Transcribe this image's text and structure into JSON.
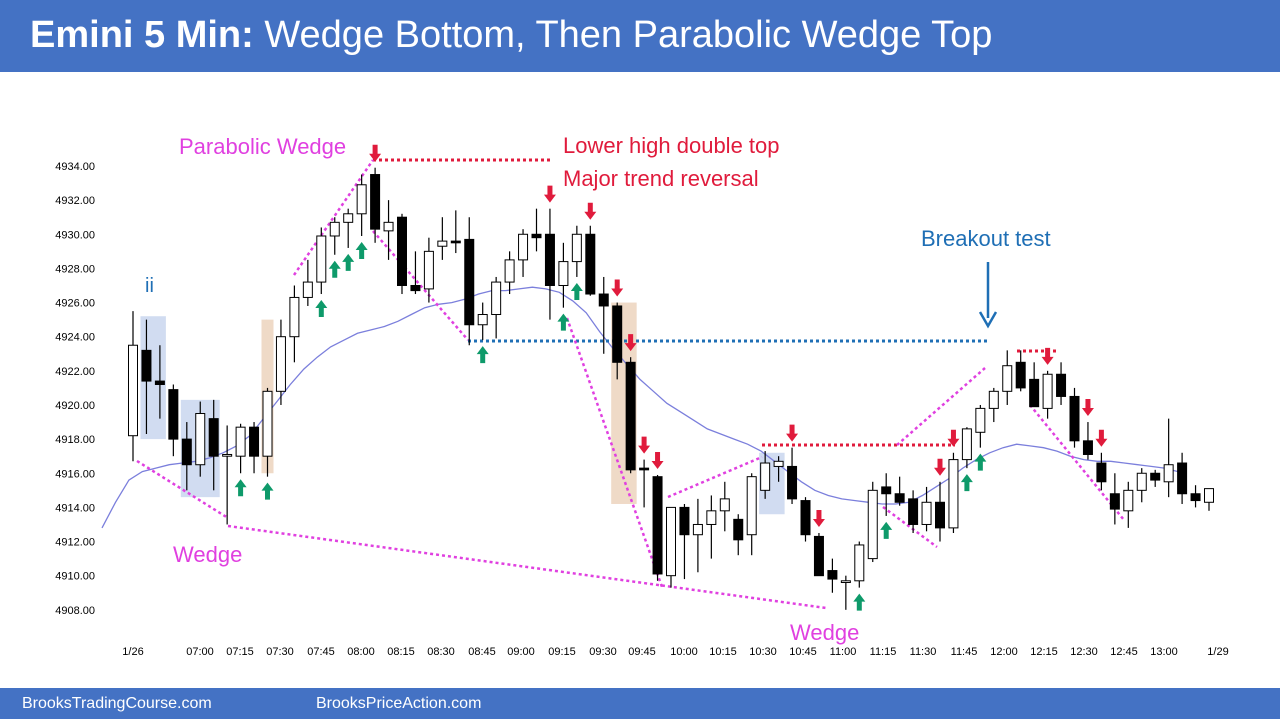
{
  "header": {
    "title_bold": "Emini 5 Min:",
    "title_rest": "Wedge Bottom, Then Parabolic Wedge Top",
    "background": "#4472c4"
  },
  "footer": {
    "left_link": "BrooksTradingCourse.com",
    "right_link": "BrooksPriceAction.com"
  },
  "chart_data": {
    "type": "candlestick",
    "title": "",
    "y_ticks": [
      "4934.00",
      "4932.00",
      "4930.00",
      "4928.00",
      "4926.00",
      "4924.00",
      "4922.00",
      "4920.00",
      "4918.00",
      "4916.00",
      "4914.00",
      "4912.00",
      "4910.00",
      "4908.00"
    ],
    "x_ticks": [
      "1/26",
      "07:00",
      "07:15",
      "07:30",
      "07:45",
      "08:00",
      "08:15",
      "08:30",
      "08:45",
      "09:00",
      "09:15",
      "09:30",
      "09:45",
      "10:00",
      "10:15",
      "10:30",
      "10:45",
      "11:00",
      "11:15",
      "11:30",
      "11:45",
      "12:00",
      "12:15",
      "12:30",
      "12:45",
      "13:00",
      "1/29"
    ],
    "ylim": [
      4907,
      4935.5
    ],
    "colors": {
      "bull": "#ffffff",
      "bear": "#000000",
      "ema": "#7b7fdc",
      "magenta": "#e040e0",
      "red": "#e01b3c",
      "blue": "#1f6fb5",
      "green": "#0e9a6a"
    },
    "candles": [
      {
        "o": 4918.2,
        "h": 4925.5,
        "l": 4916.7,
        "c": 4923.5
      },
      {
        "o": 4923.2,
        "h": 4925.0,
        "l": 4918.3,
        "c": 4921.4
      },
      {
        "o": 4921.4,
        "h": 4923.5,
        "l": 4919.2,
        "c": 4921.2
      },
      {
        "o": 4920.9,
        "h": 4921.2,
        "l": 4917.0,
        "c": 4918.0
      },
      {
        "o": 4918.0,
        "h": 4919.0,
        "l": 4915.0,
        "c": 4916.5
      },
      {
        "o": 4916.5,
        "h": 4920.2,
        "l": 4915.8,
        "c": 4919.5
      },
      {
        "o": 4919.2,
        "h": 4920.3,
        "l": 4915.0,
        "c": 4917.0
      },
      {
        "o": 4917.0,
        "h": 4918.8,
        "l": 4913.0,
        "c": 4917.1
      },
      {
        "o": 4917.0,
        "h": 4918.9,
        "l": 4916.0,
        "c": 4918.7
      },
      {
        "o": 4918.7,
        "h": 4919.0,
        "l": 4916.0,
        "c": 4917.0
      },
      {
        "o": 4917.0,
        "h": 4921.0,
        "l": 4915.8,
        "c": 4920.8
      },
      {
        "o": 4920.8,
        "h": 4925.0,
        "l": 4920.0,
        "c": 4924.0
      },
      {
        "o": 4924.0,
        "h": 4927.0,
        "l": 4922.5,
        "c": 4926.3
      },
      {
        "o": 4926.3,
        "h": 4928.5,
        "l": 4925.8,
        "c": 4927.2
      },
      {
        "o": 4927.2,
        "h": 4930.4,
        "l": 4926.5,
        "c": 4929.9
      },
      {
        "o": 4929.9,
        "h": 4931.0,
        "l": 4928.8,
        "c": 4930.7
      },
      {
        "o": 4930.7,
        "h": 4931.5,
        "l": 4929.2,
        "c": 4931.2
      },
      {
        "o": 4931.2,
        "h": 4933.5,
        "l": 4929.9,
        "c": 4932.9
      },
      {
        "o": 4933.5,
        "h": 4933.9,
        "l": 4929.5,
        "c": 4930.3
      },
      {
        "o": 4930.2,
        "h": 4932.0,
        "l": 4928.5,
        "c": 4930.7
      },
      {
        "o": 4931.0,
        "h": 4931.2,
        "l": 4926.5,
        "c": 4927.0
      },
      {
        "o": 4927.0,
        "h": 4929.0,
        "l": 4926.5,
        "c": 4926.7
      },
      {
        "o": 4926.8,
        "h": 4929.8,
        "l": 4926.0,
        "c": 4929.0
      },
      {
        "o": 4929.3,
        "h": 4931.0,
        "l": 4928.5,
        "c": 4929.6
      },
      {
        "o": 4929.6,
        "h": 4931.4,
        "l": 4928.9,
        "c": 4929.5
      },
      {
        "o": 4929.7,
        "h": 4931.0,
        "l": 4923.5,
        "c": 4924.7
      },
      {
        "o": 4924.7,
        "h": 4926.0,
        "l": 4923.8,
        "c": 4925.3
      },
      {
        "o": 4925.3,
        "h": 4927.5,
        "l": 4923.9,
        "c": 4927.2
      },
      {
        "o": 4927.2,
        "h": 4929.0,
        "l": 4926.5,
        "c": 4928.5
      },
      {
        "o": 4928.5,
        "h": 4930.3,
        "l": 4927.5,
        "c": 4930.0
      },
      {
        "o": 4930.0,
        "h": 4931.5,
        "l": 4929.0,
        "c": 4929.8
      },
      {
        "o": 4930.0,
        "h": 4931.5,
        "l": 4925.0,
        "c": 4927.0
      },
      {
        "o": 4927.0,
        "h": 4929.5,
        "l": 4925.7,
        "c": 4928.4
      },
      {
        "o": 4928.4,
        "h": 4930.5,
        "l": 4927.5,
        "c": 4930.0
      },
      {
        "o": 4930.0,
        "h": 4930.5,
        "l": 4926.4,
        "c": 4926.5
      },
      {
        "o": 4926.5,
        "h": 4927.5,
        "l": 4923.0,
        "c": 4925.8
      },
      {
        "o": 4925.8,
        "h": 4926.0,
        "l": 4921.5,
        "c": 4922.5
      },
      {
        "o": 4922.5,
        "h": 4922.8,
        "l": 4916.0,
        "c": 4916.2
      },
      {
        "o": 4916.3,
        "h": 4916.8,
        "l": 4914.0,
        "c": 4916.2
      },
      {
        "o": 4915.8,
        "h": 4915.9,
        "l": 4909.7,
        "c": 4910.1
      },
      {
        "o": 4910.0,
        "h": 4914.0,
        "l": 4909.3,
        "c": 4914.0
      },
      {
        "o": 4914.0,
        "h": 4914.2,
        "l": 4909.8,
        "c": 4912.4
      },
      {
        "o": 4912.4,
        "h": 4914.5,
        "l": 4910.2,
        "c": 4913.0
      },
      {
        "o": 4913.0,
        "h": 4914.7,
        "l": 4911.0,
        "c": 4913.8
      },
      {
        "o": 4913.8,
        "h": 4915.5,
        "l": 4912.6,
        "c": 4914.5
      },
      {
        "o": 4913.3,
        "h": 4913.6,
        "l": 4911.2,
        "c": 4912.1
      },
      {
        "o": 4912.4,
        "h": 4916.0,
        "l": 4911.2,
        "c": 4915.8
      },
      {
        "o": 4915.0,
        "h": 4917.3,
        "l": 4914.5,
        "c": 4916.6
      },
      {
        "o": 4916.4,
        "h": 4917.0,
        "l": 4915.5,
        "c": 4916.7
      },
      {
        "o": 4916.4,
        "h": 4917.5,
        "l": 4914.2,
        "c": 4914.5
      },
      {
        "o": 4914.4,
        "h": 4914.6,
        "l": 4912.0,
        "c": 4912.4
      },
      {
        "o": 4912.3,
        "h": 4912.5,
        "l": 4910.0,
        "c": 4910.0
      },
      {
        "o": 4910.3,
        "h": 4911.0,
        "l": 4909.0,
        "c": 4909.8
      },
      {
        "o": 4909.6,
        "h": 4910.0,
        "l": 4908.0,
        "c": 4909.7
      },
      {
        "o": 4909.7,
        "h": 4912.0,
        "l": 4909.3,
        "c": 4911.8
      },
      {
        "o": 4911.0,
        "h": 4915.5,
        "l": 4910.8,
        "c": 4915.0
      },
      {
        "o": 4915.2,
        "h": 4916.0,
        "l": 4913.5,
        "c": 4914.8
      },
      {
        "o": 4914.8,
        "h": 4915.8,
        "l": 4914.1,
        "c": 4914.3
      },
      {
        "o": 4914.5,
        "h": 4915.0,
        "l": 4912.5,
        "c": 4913.0
      },
      {
        "o": 4913.0,
        "h": 4915.2,
        "l": 4912.6,
        "c": 4914.3
      },
      {
        "o": 4914.3,
        "h": 4915.5,
        "l": 4912.0,
        "c": 4912.8
      },
      {
        "o": 4912.8,
        "h": 4917.2,
        "l": 4912.5,
        "c": 4916.8
      },
      {
        "o": 4916.8,
        "h": 4918.7,
        "l": 4916.3,
        "c": 4918.6
      },
      {
        "o": 4918.4,
        "h": 4920.0,
        "l": 4917.5,
        "c": 4919.8
      },
      {
        "o": 4919.8,
        "h": 4921.0,
        "l": 4919.0,
        "c": 4920.8
      },
      {
        "o": 4920.8,
        "h": 4923.2,
        "l": 4920.0,
        "c": 4922.3
      },
      {
        "o": 4922.5,
        "h": 4923.2,
        "l": 4920.8,
        "c": 4921.0
      },
      {
        "o": 4921.5,
        "h": 4922.5,
        "l": 4919.9,
        "c": 4919.9
      },
      {
        "o": 4919.8,
        "h": 4922.0,
        "l": 4919.2,
        "c": 4921.8
      },
      {
        "o": 4921.8,
        "h": 4922.5,
        "l": 4920.0,
        "c": 4920.5
      },
      {
        "o": 4920.5,
        "h": 4921.0,
        "l": 4917.5,
        "c": 4917.9
      },
      {
        "o": 4917.9,
        "h": 4919.0,
        "l": 4916.8,
        "c": 4917.1
      },
      {
        "o": 4916.6,
        "h": 4917.2,
        "l": 4915.0,
        "c": 4915.5
      },
      {
        "o": 4914.8,
        "h": 4916.0,
        "l": 4913.0,
        "c": 4913.9
      },
      {
        "o": 4913.8,
        "h": 4915.5,
        "l": 4912.8,
        "c": 4915.0
      },
      {
        "o": 4915.0,
        "h": 4916.3,
        "l": 4914.3,
        "c": 4916.0
      },
      {
        "o": 4916.0,
        "h": 4916.2,
        "l": 4915.2,
        "c": 4915.6
      },
      {
        "o": 4915.5,
        "h": 4919.2,
        "l": 4914.6,
        "c": 4916.5
      },
      {
        "o": 4916.6,
        "h": 4917.2,
        "l": 4914.2,
        "c": 4914.8
      },
      {
        "o": 4914.8,
        "h": 4915.3,
        "l": 4914.0,
        "c": 4914.4
      },
      {
        "o": 4914.3,
        "h": 4915.1,
        "l": 4913.8,
        "c": 4915.1
      }
    ],
    "ema": [
      4912.8,
      4914.3,
      4915.6,
      4916.1,
      4916.3,
      4916.5,
      4916.6,
      4916.7,
      4916.9,
      4917.2,
      4917.6,
      4918.2,
      4919.2,
      4920.2,
      4921.2,
      4922.1,
      4922.8,
      4923.4,
      4923.8,
      4924.2,
      4924.4,
      4924.6,
      4924.9,
      4925.3,
      4925.7,
      4925.9,
      4926.0,
      4926.2,
      4926.5,
      4926.7,
      4926.7,
      4926.8,
      4926.9,
      4926.8,
      4926.6,
      4926.1,
      4925.4,
      4924.3,
      4923.3,
      4922.4,
      4921.5,
      4920.8,
      4920.1,
      4919.6,
      4919.1,
      4918.6,
      4918.3,
      4918.0,
      4917.7,
      4917.3,
      4916.7,
      4916.1,
      4915.5,
      4915.0,
      4914.7,
      4914.5,
      4914.4,
      4914.3,
      4914.2,
      4914.2,
      4914.3,
      4914.7,
      4915.2,
      4915.7,
      4916.3,
      4916.8,
      4917.2,
      4917.5,
      4917.7,
      4917.6,
      4917.5,
      4917.3,
      4917.0,
      4916.8,
      4916.7,
      4916.7,
      4916.6,
      4916.5,
      4916.4,
      4916.3,
      4916.1
    ],
    "ema_name": "",
    "annotations": {
      "parabolic_wedge": "Parabolic Wedge",
      "double_top_line1": "Lower high double top",
      "double_top_line2": "Major trend reversal",
      "breakout_test": "Breakout test",
      "wedge_left": "Wedge",
      "wedge_bottom": "Wedge",
      "ii": "ii"
    },
    "highlight_zones": [
      {
        "color": "#c9d6ee",
        "from_bar": 1,
        "to_bar": 2,
        "y_hi": 4925.2,
        "y_lo": 4918.0
      },
      {
        "color": "#c9d6ee",
        "from_bar": 4,
        "to_bar": 6,
        "y_hi": 4920.3,
        "y_lo": 4914.6
      },
      {
        "color": "#ecd3bd",
        "from_bar": 10,
        "to_bar": 10,
        "y_hi": 4925.0,
        "y_lo": 4916.0
      },
      {
        "color": "#ecd3bd",
        "from_bar": 36,
        "to_bar": 37,
        "y_hi": 4926.0,
        "y_lo": 4914.2
      },
      {
        "color": "#c9d6ee",
        "from_bar": 47,
        "to_bar": 48,
        "y_hi": 4917.2,
        "y_lo": 4913.6
      }
    ],
    "green_arrow_bars": [
      8,
      10,
      14,
      15,
      16,
      17,
      26,
      32,
      33,
      54,
      56,
      62,
      63
    ],
    "red_arrow_bars": [
      18,
      31,
      34,
      36,
      37,
      38,
      39,
      49,
      51,
      60,
      61,
      68,
      71,
      72
    ]
  }
}
